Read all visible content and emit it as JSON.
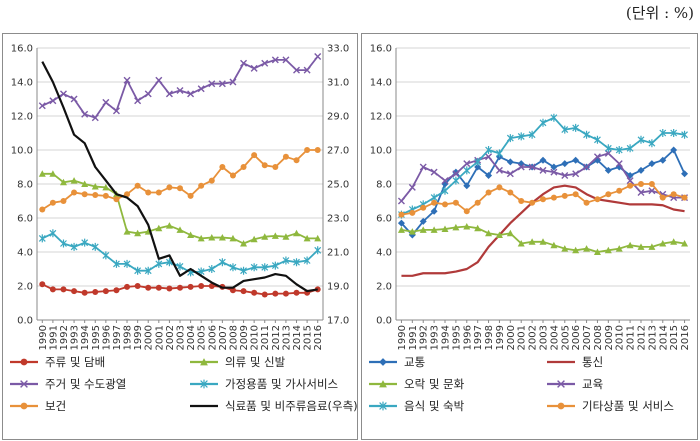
{
  "unit_note": "(단위 : %)",
  "chart_data": [
    {
      "type": "line",
      "x": [
        "1990",
        "1991",
        "1992",
        "1993",
        "1994",
        "1995",
        "1996",
        "1997",
        "1998",
        "1999",
        "2000",
        "2001",
        "2002",
        "2003",
        "2004",
        "2005",
        "2006",
        "2007",
        "2008",
        "2009",
        "2010",
        "2011",
        "2012",
        "2013",
        "2014",
        "2015",
        "2016"
      ],
      "y_left_ticks": [
        "0.0",
        "2.0",
        "4.0",
        "6.0",
        "8.0",
        "10.0",
        "12.0",
        "14.0",
        "16.0"
      ],
      "ylim_left": [
        0,
        16
      ],
      "y_right_ticks": [
        "17.0",
        "19.0",
        "21.0",
        "23.0",
        "25.0",
        "27.0",
        "29.0",
        "31.0",
        "33.0"
      ],
      "ylim_right": [
        17,
        33
      ],
      "grid": "horizontal",
      "legend": "bottom",
      "series": [
        {
          "name": "주류 및 담배",
          "color": "#c0392b",
          "marker": "circle",
          "axis": "left",
          "values": [
            2.1,
            1.8,
            1.8,
            1.7,
            1.6,
            1.65,
            1.7,
            1.75,
            1.95,
            2.0,
            1.9,
            1.9,
            1.85,
            1.9,
            1.95,
            2.0,
            2.0,
            1.95,
            1.75,
            1.7,
            1.6,
            1.5,
            1.55,
            1.55,
            1.6,
            1.6,
            1.8
          ]
        },
        {
          "name": "의류 및 신발",
          "color": "#8fb83e",
          "marker": "triangle",
          "axis": "left",
          "values": [
            8.6,
            8.6,
            8.1,
            8.2,
            8.0,
            7.85,
            7.8,
            7.4,
            5.2,
            5.1,
            5.2,
            5.4,
            5.55,
            5.3,
            5.0,
            4.8,
            4.85,
            4.85,
            4.8,
            4.5,
            4.75,
            4.9,
            4.95,
            4.9,
            5.1,
            4.8,
            4.8
          ]
        },
        {
          "name": "주거 및 수도광열",
          "color": "#7b5aa6",
          "marker": "x",
          "axis": "left",
          "values": [
            12.6,
            12.9,
            13.3,
            13.0,
            12.1,
            11.9,
            12.8,
            12.3,
            14.1,
            12.9,
            13.3,
            14.1,
            13.3,
            13.5,
            13.3,
            13.6,
            13.9,
            13.9,
            14.0,
            15.1,
            14.8,
            15.1,
            15.3,
            15.3,
            14.7,
            14.7,
            15.5
          ]
        },
        {
          "name": "가정용품 및 가사서비스",
          "color": "#3aa8c1",
          "marker": "star",
          "axis": "left",
          "values": [
            4.8,
            5.1,
            4.5,
            4.3,
            4.55,
            4.3,
            3.8,
            3.3,
            3.3,
            2.9,
            2.9,
            3.3,
            3.4,
            3.15,
            2.8,
            2.85,
            3.0,
            3.4,
            3.1,
            2.9,
            3.1,
            3.1,
            3.2,
            3.5,
            3.4,
            3.5,
            4.1
          ]
        },
        {
          "name": "보건",
          "color": "#e8913a",
          "marker": "circle",
          "axis": "left",
          "values": [
            6.5,
            6.9,
            7.0,
            7.5,
            7.4,
            7.35,
            7.3,
            7.1,
            7.4,
            7.9,
            7.5,
            7.5,
            7.8,
            7.75,
            7.3,
            7.9,
            8.2,
            9.0,
            8.5,
            9.0,
            9.7,
            9.1,
            9.0,
            9.6,
            9.4,
            10.0,
            10.0
          ]
        },
        {
          "name": "식료품 및 비주류음료(우측)",
          "color": "#111111",
          "marker": "none",
          "axis": "right",
          "values": [
            32.2,
            31.0,
            29.5,
            27.9,
            27.4,
            26.0,
            25.2,
            24.4,
            24.2,
            23.7,
            22.6,
            20.6,
            20.8,
            19.6,
            20.0,
            19.6,
            19.2,
            18.9,
            18.9,
            19.3,
            19.4,
            19.5,
            19.7,
            19.6,
            19.1,
            18.7,
            18.8
          ]
        }
      ]
    },
    {
      "type": "line",
      "x": [
        "1990",
        "1991",
        "1992",
        "1993",
        "1994",
        "1995",
        "1996",
        "1997",
        "1998",
        "1999",
        "2000",
        "2001",
        "2002",
        "2003",
        "2004",
        "2005",
        "2006",
        "2007",
        "2008",
        "2009",
        "2010",
        "2011",
        "2012",
        "2013",
        "2014",
        "2015",
        "2016"
      ],
      "y_left_ticks": [
        "0.0",
        "2.0",
        "4.0",
        "6.0",
        "8.0",
        "10.0",
        "12.0",
        "14.0",
        "16.0"
      ],
      "ylim_left": [
        0,
        16
      ],
      "grid": "horizontal",
      "legend": "bottom",
      "series": [
        {
          "name": "교통",
          "color": "#2e6fb7",
          "marker": "diamond",
          "axis": "left",
          "values": [
            5.7,
            5.0,
            5.8,
            6.4,
            8.0,
            8.7,
            7.9,
            9.0,
            8.5,
            9.6,
            9.3,
            9.2,
            9.0,
            9.4,
            9.0,
            9.2,
            9.4,
            9.0,
            9.4,
            8.8,
            9.0,
            8.5,
            8.8,
            9.2,
            9.4,
            10.0,
            8.6
          ]
        },
        {
          "name": "통신",
          "color": "#b03a3a",
          "marker": "none",
          "axis": "left",
          "values": [
            2.6,
            2.6,
            2.75,
            2.75,
            2.75,
            2.85,
            3.0,
            3.4,
            4.3,
            5.0,
            5.7,
            6.3,
            6.9,
            7.4,
            7.8,
            7.9,
            7.8,
            7.4,
            7.1,
            7.0,
            6.9,
            6.8,
            6.8,
            6.8,
            6.75,
            6.5,
            6.4
          ]
        },
        {
          "name": "오락 및 문화",
          "color": "#8fb83e",
          "marker": "triangle",
          "axis": "left",
          "values": [
            5.3,
            5.2,
            5.3,
            5.3,
            5.35,
            5.45,
            5.5,
            5.4,
            5.1,
            5.0,
            5.1,
            4.5,
            4.6,
            4.6,
            4.4,
            4.2,
            4.1,
            4.2,
            4.0,
            4.1,
            4.2,
            4.4,
            4.3,
            4.3,
            4.5,
            4.6,
            4.5
          ]
        },
        {
          "name": "교육",
          "color": "#7b5aa6",
          "marker": "x",
          "axis": "left",
          "values": [
            7.0,
            7.8,
            9.0,
            8.7,
            8.2,
            8.6,
            9.2,
            9.4,
            9.6,
            8.8,
            8.6,
            9.0,
            9.0,
            8.8,
            8.7,
            8.5,
            8.6,
            9.0,
            9.6,
            9.8,
            9.2,
            8.2,
            7.5,
            7.6,
            7.4,
            7.2,
            7.2
          ]
        },
        {
          "name": "음식 및 숙박",
          "color": "#3aa8c1",
          "marker": "star",
          "axis": "left",
          "values": [
            6.2,
            6.5,
            6.8,
            7.2,
            7.6,
            8.2,
            8.8,
            9.3,
            10.0,
            9.8,
            10.7,
            10.8,
            10.9,
            11.6,
            11.9,
            11.2,
            11.3,
            10.9,
            10.6,
            10.1,
            10.0,
            10.1,
            10.6,
            10.4,
            11.0,
            11.0,
            10.9
          ]
        },
        {
          "name": "기타상품 및 서비스",
          "color": "#e8913a",
          "marker": "circle",
          "axis": "left",
          "values": [
            6.2,
            6.3,
            6.6,
            6.9,
            6.8,
            6.9,
            6.4,
            6.9,
            7.5,
            7.8,
            7.5,
            7.0,
            6.9,
            7.1,
            7.2,
            7.3,
            7.4,
            6.9,
            7.1,
            7.4,
            7.6,
            7.9,
            8.0,
            8.0,
            7.2,
            7.4,
            7.2
          ]
        }
      ]
    }
  ]
}
